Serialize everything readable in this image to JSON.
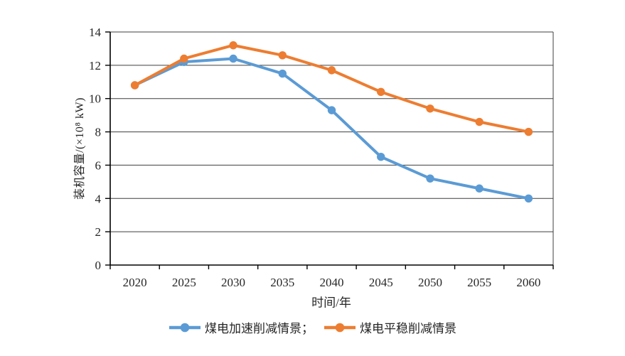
{
  "figure": {
    "background": "#ffffff",
    "text_color": "#262626",
    "axis_color": "#000000",
    "gridline_color": "#3f3f3f"
  },
  "chart_data": {
    "type": "line",
    "title": "",
    "xlabel": "时间/年",
    "ylabel": "装机容量/(×10⁸ kW)",
    "categories": [
      "2020",
      "2025",
      "2030",
      "2035",
      "2040",
      "2045",
      "2050",
      "2055",
      "2060"
    ],
    "y_ticks": [
      0,
      2,
      4,
      6,
      8,
      10,
      12,
      14
    ],
    "ylim": [
      0,
      14
    ],
    "grid": "horizontal",
    "legend_position": "bottom",
    "series": [
      {
        "name": "煤电加速削减情景",
        "legend_label": "煤电加速削减情景；",
        "color": "#5B9BD5",
        "marker": "circle",
        "values": [
          10.8,
          12.2,
          12.4,
          11.5,
          9.3,
          6.5,
          5.2,
          4.6,
          4.0
        ]
      },
      {
        "name": "煤电平稳削减情景",
        "legend_label": "煤电平稳削减情景",
        "color": "#ED7D31",
        "marker": "circle",
        "values": [
          10.8,
          12.4,
          13.2,
          12.6,
          11.7,
          10.4,
          9.4,
          8.6,
          8.0
        ]
      }
    ]
  }
}
